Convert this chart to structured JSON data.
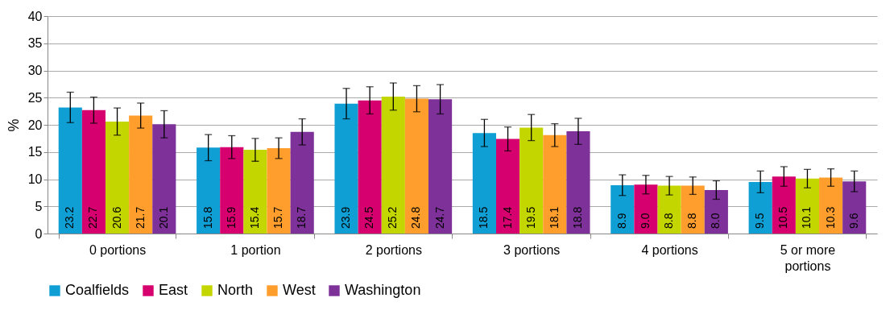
{
  "chart_data": {
    "type": "bar",
    "ylabel": "%",
    "categories": [
      "0 portions",
      "1 portion",
      "2 portions",
      "3 portions",
      "4 portions",
      "5 or more portions"
    ],
    "ylim": [
      0,
      40
    ],
    "yticks": [
      0,
      5,
      10,
      15,
      20,
      25,
      30,
      35,
      40
    ],
    "grid": "y",
    "legend": "bottom",
    "series": [
      {
        "name": "Coalfields",
        "color": "#0f9fd4",
        "values": [
          23.2,
          15.8,
          23.9,
          18.5,
          8.9,
          9.5
        ],
        "value_labels": [
          "23.2",
          "15.8",
          "23.9",
          "18.5",
          "8.9",
          "9.5"
        ],
        "errors": [
          2.8,
          2.4,
          2.8,
          2.5,
          1.9,
          2.0
        ]
      },
      {
        "name": "East",
        "color": "#d6006f",
        "values": [
          22.7,
          15.9,
          24.5,
          17.4,
          9.0,
          10.5
        ],
        "value_labels": [
          "22.7",
          "15.9",
          "24.5",
          "17.4",
          "9.0",
          "10.5"
        ],
        "errors": [
          2.4,
          2.1,
          2.5,
          2.2,
          1.7,
          1.8
        ]
      },
      {
        "name": "North",
        "color": "#c4d600",
        "values": [
          20.6,
          15.4,
          25.2,
          19.5,
          8.8,
          10.1
        ],
        "value_labels": [
          "20.6",
          "15.4",
          "25.2",
          "19.5",
          "8.8",
          "10.1"
        ],
        "errors": [
          2.5,
          2.1,
          2.5,
          2.4,
          1.7,
          1.7
        ]
      },
      {
        "name": "West",
        "color": "#ff9e2c",
        "values": [
          21.7,
          15.7,
          24.8,
          18.1,
          8.8,
          10.3
        ],
        "value_labels": [
          "21.7",
          "15.7",
          "24.8",
          "18.1",
          "8.8",
          "10.3"
        ],
        "errors": [
          2.3,
          1.9,
          2.4,
          2.1,
          1.6,
          1.6
        ]
      },
      {
        "name": "Washington",
        "color": "#7d3199",
        "values": [
          20.1,
          18.7,
          24.7,
          18.8,
          8.0,
          9.6
        ],
        "value_labels": [
          "20.1",
          "18.7",
          "24.7",
          "18.8",
          "8.0",
          "9.6"
        ],
        "errors": [
          2.5,
          2.4,
          2.7,
          2.4,
          1.7,
          1.9
        ]
      }
    ]
  }
}
